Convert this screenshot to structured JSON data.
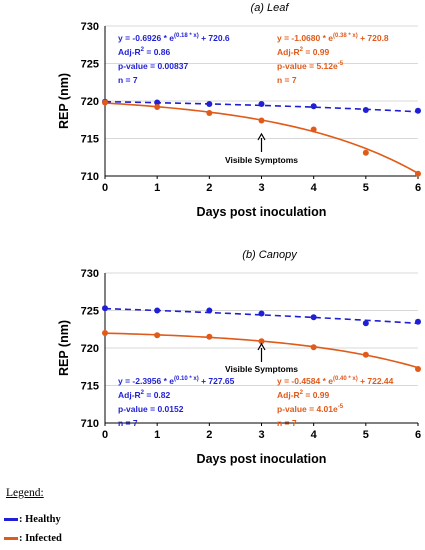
{
  "colors": {
    "healthy": "#1f1fd6",
    "infected": "#e05a1a",
    "grid": "#d9d9d9"
  },
  "chart_data": [
    {
      "type": "line",
      "title": "(a)  Leaf",
      "xlabel": "Days post inoculation",
      "ylabel": "REP (nm)",
      "xlim": [
        0,
        6
      ],
      "ylim": [
        710,
        730
      ],
      "xticks": [
        0,
        1,
        2,
        3,
        4,
        5,
        6
      ],
      "yticks": [
        710,
        715,
        720,
        725,
        730
      ],
      "grid": "horizontal",
      "series": [
        {
          "name": "Healthy",
          "color_key": "healthy",
          "dash": true,
          "x": [
            0,
            1,
            2,
            3,
            4,
            5,
            6
          ],
          "y": [
            719.9,
            719.8,
            719.6,
            719.6,
            719.3,
            718.8,
            718.7
          ],
          "fit": {
            "a": -0.6926,
            "b": 0.18,
            "c": 720.6
          }
        },
        {
          "name": "Infected",
          "color_key": "infected",
          "dash": false,
          "x": [
            0,
            1,
            2,
            3,
            4,
            5,
            6
          ],
          "y": [
            719.8,
            719.2,
            718.4,
            717.4,
            716.2,
            713.1,
            710.3
          ],
          "fit": {
            "a": -1.068,
            "b": 0.38,
            "c": 720.8
          }
        }
      ],
      "annotations": [
        {
          "color_key": "healthy",
          "pre": "y = -0.6926 * e",
          "exp": "(0.18 * x)",
          "post": " + 720.6",
          "adj_pre": "Adj-R",
          "adj_sup": "2",
          "adj_post": " = 0.86",
          "p_pre": "p-value = 0.00837",
          "p_sup": "",
          "n": "n = 7"
        },
        {
          "color_key": "infected",
          "pre": "y = -1.0680 * e",
          "exp": "(0.38 * x)",
          "post": " + 720.8",
          "adj_pre": "Adj-R",
          "adj_sup": "2",
          "adj_post": " = 0.99",
          "p_pre": "p-value = 5.12e",
          "p_sup": "-5",
          "n": "n = 7"
        }
      ],
      "symptom_label": "Visible Symptoms",
      "symptom_day": 3
    },
    {
      "type": "line",
      "title": "(b)  Canopy",
      "xlabel": "Days post inoculation",
      "ylabel": "REP (nm)",
      "xlim": [
        0,
        6
      ],
      "ylim": [
        710,
        730
      ],
      "xticks": [
        0,
        1,
        2,
        3,
        4,
        5,
        6
      ],
      "yticks": [
        710,
        715,
        720,
        725,
        730
      ],
      "grid": "horizontal",
      "series": [
        {
          "name": "Healthy",
          "color_key": "healthy",
          "dash": true,
          "x": [
            0,
            1,
            2,
            3,
            4,
            5,
            6
          ],
          "y": [
            725.3,
            725.0,
            725.0,
            724.6,
            724.1,
            723.3,
            723.5
          ],
          "fit": {
            "a": -2.3956,
            "b": 0.1,
            "c": 727.65
          }
        },
        {
          "name": "Infected",
          "color_key": "infected",
          "dash": false,
          "x": [
            0,
            1,
            2,
            3,
            4,
            5,
            6
          ],
          "y": [
            722.0,
            721.7,
            721.5,
            720.9,
            720.1,
            719.1,
            717.2
          ],
          "fit": {
            "a": -0.4584,
            "b": 0.4,
            "c": 722.44
          }
        }
      ],
      "annotations": [
        {
          "color_key": "healthy",
          "pre": "y = -2.3956 * e",
          "exp": "(0.10 * x)",
          "post": " + 727.65",
          "adj_pre": "Adj-R",
          "adj_sup": "2",
          "adj_post": " = 0.82",
          "p_pre": "p-value = 0.0152",
          "p_sup": "",
          "n": "n = 7"
        },
        {
          "color_key": "infected",
          "pre": "y = -0.4584 * e",
          "exp": "(0.40 * x)",
          "post": " + 722.44",
          "adj_pre": "Adj-R",
          "adj_sup": "2",
          "adj_post": " = 0.99",
          "p_pre": "p-value = 4.01e",
          "p_sup": "-5",
          "n": "n = 7"
        }
      ],
      "symptom_label": "Visible Symptoms",
      "symptom_day": 3
    }
  ],
  "legend": {
    "title": "Legend:",
    "items": [
      {
        "label": ": Healthy",
        "color_key": "healthy"
      },
      {
        "label": ": Infected",
        "color_key": "infected"
      }
    ]
  }
}
